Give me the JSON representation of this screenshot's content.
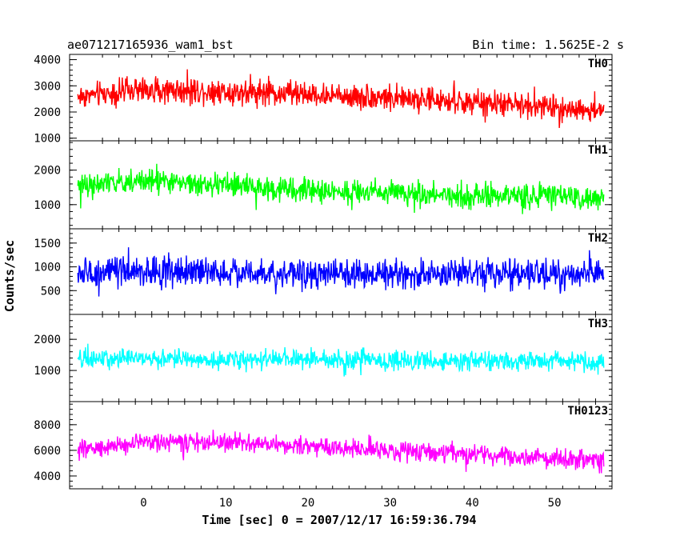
{
  "chart_data": {
    "type": "line",
    "title": "ae071217165936_wam1_bst",
    "subtitle": "Bin time: 1.5625E-2 s",
    "xlabel": "Time [sec] 0 = 2007/12/17 16:59:36.794",
    "ylabel": "Counts/sec",
    "xlim": [
      -9,
      57
    ],
    "data_x_range": [
      -8,
      56
    ],
    "x_ticks": [
      "0",
      "10",
      "20",
      "30",
      "40",
      "50"
    ],
    "grid": false,
    "panels": [
      {
        "name": "TH0",
        "color": "#ff0000",
        "ylim": [
          900,
          4200
        ],
        "y_ticks": [
          "1000",
          "2000",
          "3000",
          "4000"
        ],
        "mean_trend": [
          [
            -8,
            2600
          ],
          [
            0,
            2850
          ],
          [
            10,
            2800
          ],
          [
            20,
            2650
          ],
          [
            30,
            2550
          ],
          [
            40,
            2350
          ],
          [
            50,
            2200
          ],
          [
            56,
            2000
          ]
        ],
        "spread": 700
      },
      {
        "name": "TH1",
        "color": "#00ff00",
        "ylim": [
          300,
          2850
        ],
        "y_ticks": [
          "1000",
          "2000"
        ],
        "mean_trend": [
          [
            -8,
            1500
          ],
          [
            0,
            1700
          ],
          [
            10,
            1550
          ],
          [
            20,
            1400
          ],
          [
            30,
            1350
          ],
          [
            40,
            1250
          ],
          [
            50,
            1250
          ],
          [
            56,
            1150
          ]
        ],
        "spread": 500
      },
      {
        "name": "TH2",
        "color": "#0000ff",
        "ylim": [
          0,
          1800
        ],
        "y_ticks": [
          "500",
          "1000",
          "1500"
        ],
        "mean_trend": [
          [
            -8,
            850
          ],
          [
            0,
            900
          ],
          [
            10,
            900
          ],
          [
            20,
            850
          ],
          [
            30,
            850
          ],
          [
            40,
            850
          ],
          [
            50,
            850
          ],
          [
            56,
            850
          ]
        ],
        "spread": 450
      },
      {
        "name": "TH3",
        "color": "#00ffff",
        "ylim": [
          0,
          2800
        ],
        "y_ticks": [
          "1000",
          "2000"
        ],
        "mean_trend": [
          [
            -8,
            1350
          ],
          [
            0,
            1400
          ],
          [
            10,
            1350
          ],
          [
            20,
            1350
          ],
          [
            30,
            1300
          ],
          [
            40,
            1300
          ],
          [
            50,
            1300
          ],
          [
            56,
            1250
          ]
        ],
        "spread": 450
      },
      {
        "name": "TH0123",
        "color": "#ff00ff",
        "ylim": [
          3000,
          9800
        ],
        "y_ticks": [
          "4000",
          "6000",
          "8000"
        ],
        "mean_trend": [
          [
            -8,
            6000
          ],
          [
            0,
            6700
          ],
          [
            10,
            6600
          ],
          [
            20,
            6300
          ],
          [
            30,
            6000
          ],
          [
            40,
            5700
          ],
          [
            50,
            5400
          ],
          [
            56,
            5100
          ]
        ],
        "spread": 1100
      }
    ]
  }
}
